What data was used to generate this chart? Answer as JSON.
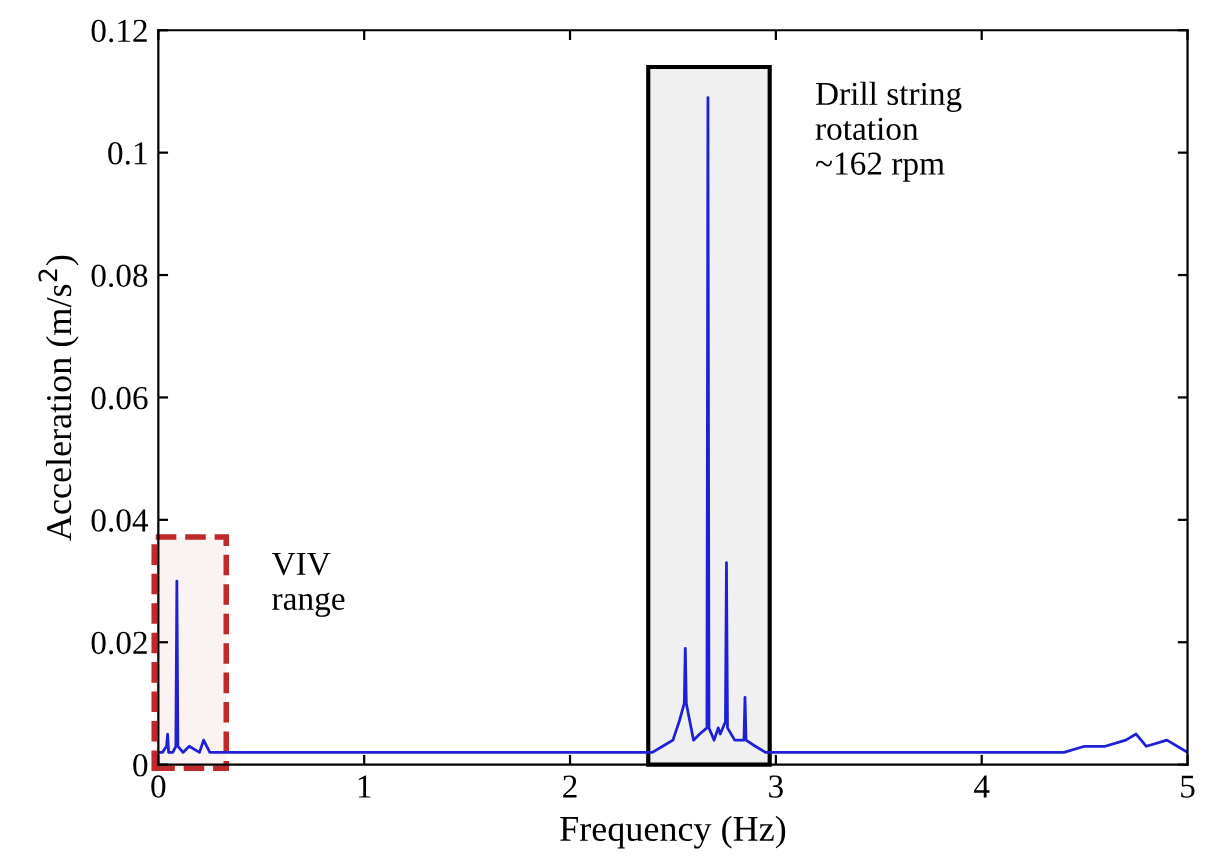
{
  "chart_data": {
    "type": "line",
    "xlabel": "Frequency (Hz)",
    "ylabel": "Acceleration (m/s$^{2}$)",
    "series": [
      {
        "color": "#1f1fd6",
        "x": [
          0,
          0.02,
          0.04,
          0.045,
          0.05,
          0.07,
          0.085,
          0.09,
          0.095,
          0.12,
          0.15,
          0.2,
          0.22,
          0.25,
          0.3,
          0.4,
          0.5,
          0.6,
          0.7,
          0.8,
          0.9,
          1.0,
          1.1,
          1.2,
          1.3,
          1.4,
          1.5,
          1.6,
          1.7,
          1.8,
          1.9,
          2.0,
          2.1,
          2.2,
          2.3,
          2.4,
          2.45,
          2.5,
          2.53,
          2.555,
          2.56,
          2.565,
          2.6,
          2.63,
          2.665,
          2.67,
          2.675,
          2.7,
          2.72,
          2.73,
          2.755,
          2.76,
          2.765,
          2.8,
          2.845,
          2.85,
          2.855,
          2.9,
          2.95,
          3.0,
          3.2,
          3.4,
          3.6,
          3.8,
          4.0,
          4.2,
          4.4,
          4.5,
          4.6,
          4.7,
          4.75,
          4.8,
          4.9,
          5.0
        ],
        "values": [
          0.002,
          0.002,
          0.003,
          0.005,
          0.002,
          0.002,
          0.003,
          0.03,
          0.003,
          0.002,
          0.003,
          0.002,
          0.004,
          0.002,
          0.002,
          0.002,
          0.002,
          0.002,
          0.002,
          0.002,
          0.002,
          0.002,
          0.002,
          0.002,
          0.002,
          0.002,
          0.002,
          0.002,
          0.002,
          0.002,
          0.002,
          0.002,
          0.002,
          0.002,
          0.002,
          0.002,
          0.003,
          0.004,
          0.007,
          0.01,
          0.019,
          0.01,
          0.004,
          0.005,
          0.006,
          0.109,
          0.006,
          0.004,
          0.006,
          0.005,
          0.007,
          0.033,
          0.006,
          0.004,
          0.004,
          0.011,
          0.004,
          0.003,
          0.002,
          0.002,
          0.002,
          0.002,
          0.002,
          0.002,
          0.002,
          0.002,
          0.002,
          0.003,
          0.003,
          0.004,
          0.005,
          0.003,
          0.004,
          0.002
        ]
      }
    ],
    "xlim": [
      0,
      5
    ],
    "ylim": [
      0,
      0.12
    ],
    "xticks": [
      0,
      1,
      2,
      3,
      4,
      5
    ],
    "yticks": [
      0,
      0.02,
      0.04,
      0.06,
      0.08,
      0.1,
      0.12
    ],
    "bands": [
      {
        "axis": "x",
        "from": -0.02,
        "to": 0.33,
        "label": "VIV\nrange",
        "color": "#c0282a"
      },
      {
        "axis": "x",
        "from": 2.38,
        "to": 2.97,
        "label": "Drill string\nrotation\n~162 rpm",
        "color": "#000000"
      }
    ],
    "grid": false,
    "legend": false
  }
}
